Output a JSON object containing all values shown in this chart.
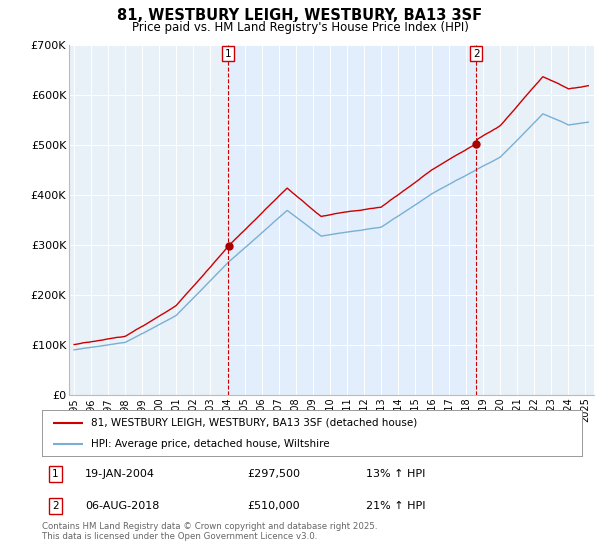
{
  "title": "81, WESTBURY LEIGH, WESTBURY, BA13 3SF",
  "subtitle": "Price paid vs. HM Land Registry's House Price Index (HPI)",
  "legend_label_red": "81, WESTBURY LEIGH, WESTBURY, BA13 3SF (detached house)",
  "legend_label_blue": "HPI: Average price, detached house, Wiltshire",
  "footnote": "Contains HM Land Registry data © Crown copyright and database right 2025.\nThis data is licensed under the Open Government Licence v3.0.",
  "sale1_date": "19-JAN-2004",
  "sale1_price": "£297,500",
  "sale1_hpi": "13% ↑ HPI",
  "sale2_date": "06-AUG-2018",
  "sale2_price": "£510,000",
  "sale2_hpi": "21% ↑ HPI",
  "vline1_x": 2004.05,
  "vline2_x": 2018.6,
  "red_color": "#cc0000",
  "blue_color": "#7aafd4",
  "shade_color": "#ddeeff",
  "dot_color": "#aa0000",
  "background_color": "#e8f0f8",
  "ylim": [
    0,
    700000
  ],
  "xlim": [
    1994.7,
    2025.5
  ],
  "yticks": [
    0,
    100000,
    200000,
    300000,
    400000,
    500000,
    600000,
    700000
  ],
  "ytick_labels": [
    "£0",
    "£100K",
    "£200K",
    "£300K",
    "£400K",
    "£500K",
    "£600K",
    "£700K"
  ]
}
